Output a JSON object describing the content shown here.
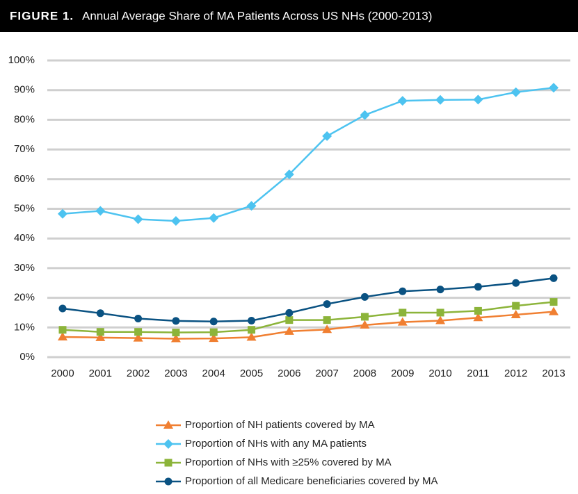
{
  "chart_data": {
    "type": "line",
    "figure_label": "FIGURE 1.",
    "title": "Annual Average Share of MA Patients Across US NHs (2000-2013)",
    "categories": [
      "2000",
      "2001",
      "2002",
      "2003",
      "2004",
      "2005",
      "2006",
      "2007",
      "2008",
      "2009",
      "2010",
      "2011",
      "2012",
      "2013"
    ],
    "ylim": [
      0,
      100
    ],
    "yticks": [
      {
        "value": 0,
        "label": "0%"
      },
      {
        "value": 10,
        "label": "10%"
      },
      {
        "value": 20,
        "label": "20%"
      },
      {
        "value": 30,
        "label": "30%"
      },
      {
        "value": 40,
        "label": "40%"
      },
      {
        "value": 50,
        "label": "50%"
      },
      {
        "value": 60,
        "label": "60%"
      },
      {
        "value": 70,
        "label": "70%"
      },
      {
        "value": 80,
        "label": "80%"
      },
      {
        "value": 90,
        "label": "90%"
      },
      {
        "value": 100,
        "label": "100%"
      }
    ],
    "grid": true,
    "legend": "bottom",
    "series": [
      {
        "name": "Proportion of NH patients covered by MA",
        "color": "#f07f31",
        "marker": "triangle",
        "values": [
          6.8,
          6.6,
          6.4,
          6.2,
          6.3,
          6.7,
          8.7,
          9.3,
          10.8,
          11.8,
          12.3,
          13.3,
          14.3,
          15.3
        ]
      },
      {
        "name": "Proportion of NHs with any MA patients",
        "color": "#4dc3f0",
        "marker": "diamond",
        "values": [
          48.3,
          49.3,
          46.5,
          45.9,
          46.9,
          51.0,
          61.6,
          74.5,
          81.6,
          86.4,
          86.7,
          86.8,
          89.3,
          90.8
        ]
      },
      {
        "name": "Proportion of NHs with ≥25% covered by MA",
        "color": "#8cb43a",
        "marker": "square",
        "values": [
          9.2,
          8.5,
          8.5,
          8.3,
          8.4,
          9.2,
          12.5,
          12.5,
          13.6,
          15.0,
          15.0,
          15.6,
          17.3,
          18.6
        ]
      },
      {
        "name": "Proportion of all Medicare beneficiaries covered by MA",
        "color": "#0a5282",
        "marker": "circle",
        "values": [
          16.4,
          14.8,
          13.0,
          12.2,
          12.0,
          12.3,
          14.9,
          17.9,
          20.3,
          22.2,
          22.8,
          23.7,
          25.0,
          26.6
        ]
      }
    ]
  }
}
